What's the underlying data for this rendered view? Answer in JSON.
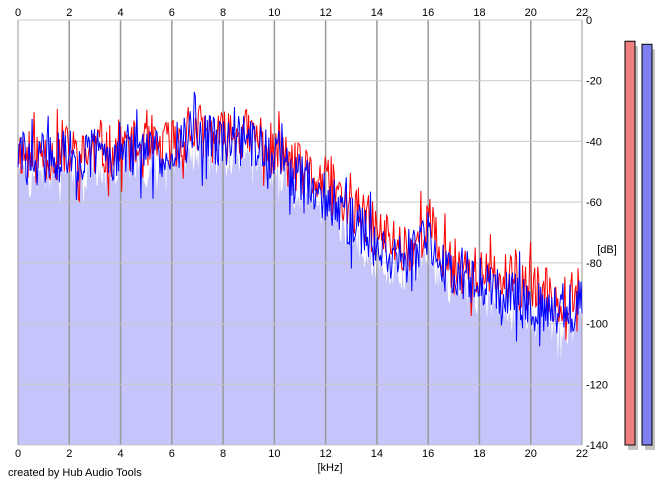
{
  "credit": "created by Hub Audio Tools",
  "colors": {
    "background": "#ffffff",
    "fill": "#c5c4fb",
    "grid": "#999999",
    "left_channel": "#ff0000",
    "right_channel": "#0000ff",
    "left_meter": "#f08080",
    "right_meter": "#8080f0",
    "meter_shadow": "#c4c4c4"
  },
  "chart_data": {
    "type": "line",
    "xlabel": "[kHz]",
    "ylabel": "[dB]",
    "xlim": [
      0,
      22
    ],
    "ylim": [
      -140,
      0
    ],
    "x_ticks": [
      "0",
      "2",
      "4",
      "6",
      "8",
      "10",
      "12",
      "14",
      "16",
      "18",
      "20",
      "22"
    ],
    "y_ticks": [
      "0",
      "-20",
      "-40",
      "-60",
      "-80",
      "-100",
      "-120",
      "-140"
    ],
    "grid": true,
    "series": [
      {
        "channel": "left",
        "color": "#ff0000",
        "x": [
          0,
          0.5,
          1,
          1.5,
          2,
          2.5,
          3,
          3.5,
          4,
          4.5,
          5,
          5.5,
          6,
          6.5,
          7,
          7.5,
          8,
          8.5,
          9,
          9.5,
          10,
          10.5,
          11,
          11.5,
          12,
          12.5,
          13,
          13.5,
          14,
          14.5,
          15,
          15.5,
          16,
          16.5,
          17,
          17.5,
          18,
          18.5,
          19,
          19.5,
          20,
          20.5,
          21,
          21.5,
          22
        ],
        "values": [
          -42,
          -46,
          -44,
          -45,
          -43,
          -46,
          -42,
          -44,
          -41,
          -42,
          -44,
          -43,
          -40,
          -39,
          -36,
          -38,
          -39,
          -37,
          -38,
          -39,
          -44,
          -46,
          -50,
          -52,
          -54,
          -58,
          -62,
          -65,
          -70,
          -72,
          -75,
          -74,
          -65,
          -78,
          -80,
          -82,
          -84,
          -85,
          -86,
          -87,
          -88,
          -90,
          -92,
          -90,
          -86
        ]
      },
      {
        "channel": "right",
        "color": "#0000ff",
        "x": [
          0,
          0.5,
          1,
          1.5,
          2,
          2.5,
          3,
          3.5,
          4,
          4.5,
          5,
          5.5,
          6,
          6.5,
          7,
          7.5,
          8,
          8.5,
          9,
          9.5,
          10,
          10.5,
          11,
          11.5,
          12,
          12.5,
          13,
          13.5,
          14,
          14.5,
          15,
          15.5,
          16,
          16.5,
          17,
          17.5,
          18,
          18.5,
          19,
          19.5,
          20,
          20.5,
          21,
          21.5,
          22
        ],
        "values": [
          -44,
          -47,
          -45,
          -46,
          -44,
          -47,
          -43,
          -45,
          -42,
          -43,
          -45,
          -44,
          -41,
          -40,
          -38,
          -40,
          -41,
          -39,
          -40,
          -42,
          -46,
          -48,
          -52,
          -55,
          -58,
          -62,
          -66,
          -70,
          -74,
          -76,
          -78,
          -77,
          -72,
          -80,
          -82,
          -84,
          -86,
          -88,
          -89,
          -90,
          -92,
          -94,
          -96,
          -95,
          -92
        ]
      }
    ],
    "meters": [
      {
        "channel": "left",
        "level_db": -7,
        "color": "#f08080"
      },
      {
        "channel": "right",
        "level_db": -8,
        "color": "#8080f0"
      }
    ]
  }
}
